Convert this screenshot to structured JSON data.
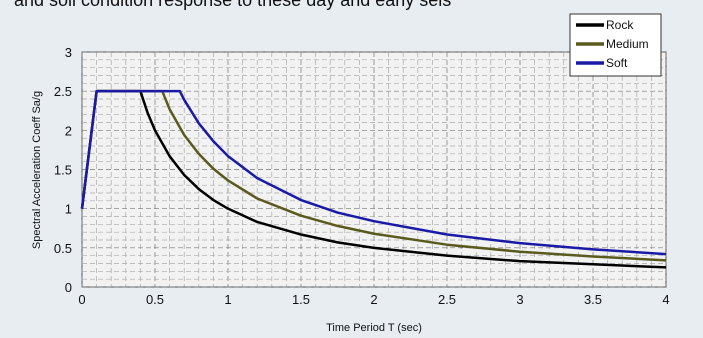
{
  "header_text": "and soil condition response to these day and early seis",
  "chart_data": {
    "type": "line",
    "xlabel": "Time Period T (sec)",
    "ylabel": "Spectral Acceleration Coeff Sa/g",
    "xlim": [
      0,
      4
    ],
    "ylim": [
      0,
      3
    ],
    "x_ticks": [
      "0",
      "0.5",
      "1",
      "1.5",
      "2",
      "2.5",
      "3",
      "3.5",
      "4"
    ],
    "y_ticks": [
      "0",
      "0.5",
      "1",
      "1.5",
      "2",
      "2.5",
      "3"
    ],
    "grid": true,
    "legend_position": "top-right",
    "series": [
      {
        "name": "Rock",
        "color": "#000000",
        "points": [
          [
            0,
            1
          ],
          [
            0.1,
            2.5
          ],
          [
            0.4,
            2.5
          ],
          [
            0.45,
            2.22
          ],
          [
            0.5,
            2.0
          ],
          [
            0.6,
            1.67
          ],
          [
            0.7,
            1.43
          ],
          [
            0.8,
            1.25
          ],
          [
            0.9,
            1.11
          ],
          [
            1.0,
            1.0
          ],
          [
            1.2,
            0.83
          ],
          [
            1.5,
            0.67
          ],
          [
            1.75,
            0.57
          ],
          [
            2.0,
            0.5
          ],
          [
            2.5,
            0.4
          ],
          [
            3.0,
            0.33
          ],
          [
            3.5,
            0.29
          ],
          [
            4.0,
            0.25
          ]
        ]
      },
      {
        "name": "Medium",
        "color": "#5a5a1e",
        "points": [
          [
            0,
            1
          ],
          [
            0.1,
            2.5
          ],
          [
            0.55,
            2.5
          ],
          [
            0.6,
            2.27
          ],
          [
            0.7,
            1.94
          ],
          [
            0.8,
            1.7
          ],
          [
            0.9,
            1.51
          ],
          [
            1.0,
            1.36
          ],
          [
            1.2,
            1.13
          ],
          [
            1.5,
            0.91
          ],
          [
            1.75,
            0.78
          ],
          [
            2.0,
            0.68
          ],
          [
            2.5,
            0.54
          ],
          [
            3.0,
            0.45
          ],
          [
            3.5,
            0.39
          ],
          [
            4.0,
            0.34
          ]
        ]
      },
      {
        "name": "Soft",
        "color": "#1a1aa6",
        "points": [
          [
            0,
            1
          ],
          [
            0.1,
            2.5
          ],
          [
            0.67,
            2.5
          ],
          [
            0.7,
            2.39
          ],
          [
            0.8,
            2.09
          ],
          [
            0.9,
            1.86
          ],
          [
            1.0,
            1.67
          ],
          [
            1.2,
            1.39
          ],
          [
            1.5,
            1.11
          ],
          [
            1.75,
            0.95
          ],
          [
            2.0,
            0.84
          ],
          [
            2.5,
            0.67
          ],
          [
            3.0,
            0.56
          ],
          [
            3.5,
            0.48
          ],
          [
            4.0,
            0.42
          ]
        ]
      }
    ]
  }
}
